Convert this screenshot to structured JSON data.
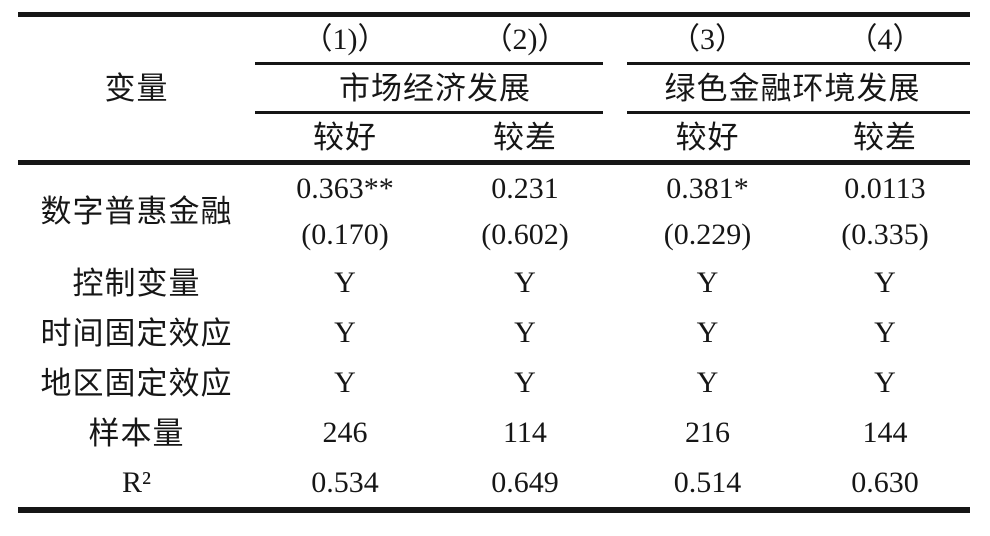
{
  "table": {
    "col_headers": [
      "（1)）",
      "（2)）",
      "（3）",
      "（4）"
    ],
    "variable_header": "变量",
    "group_headers": [
      {
        "label": "市场经济发展"
      },
      {
        "label": "绿色金融环境发展"
      }
    ],
    "subheaders": [
      "较好",
      "较差",
      "较好",
      "较差"
    ],
    "coef_row": {
      "label": "数字普惠金融",
      "values": [
        "0.363**",
        "0.231",
        "0.381*",
        "0.0113"
      ],
      "std_errors": [
        "(0.170)",
        "(0.602)",
        "(0.229)",
        "(0.335)"
      ]
    },
    "rows": [
      {
        "label": "控制变量",
        "values": [
          "Y",
          "Y",
          "Y",
          "Y"
        ]
      },
      {
        "label": "时间固定效应",
        "values": [
          "Y",
          "Y",
          "Y",
          "Y"
        ]
      },
      {
        "label": "地区固定效应",
        "values": [
          "Y",
          "Y",
          "Y",
          "Y"
        ]
      },
      {
        "label": "样本量",
        "values": [
          "246",
          "114",
          "216",
          "144"
        ]
      },
      {
        "label": "R²",
        "values": [
          "0.534",
          "0.649",
          "0.514",
          "0.630"
        ]
      }
    ],
    "rule_color": "#161616",
    "background_color": "#ffffff"
  }
}
